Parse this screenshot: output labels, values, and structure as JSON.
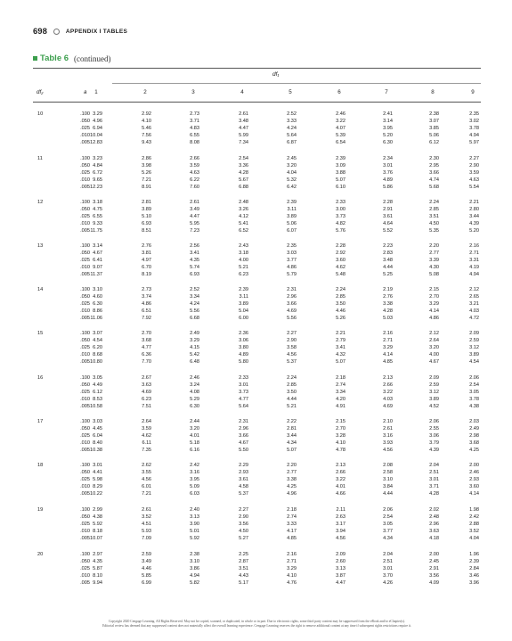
{
  "header": {
    "page_number": "698",
    "appendix_title": "APPENDIX I TABLES"
  },
  "table": {
    "label": "Table 6",
    "continued": "(continued)",
    "df1_label": "df₁",
    "df2_label": "df₂",
    "alpha_label": "a",
    "columns": [
      "1",
      "2",
      "3",
      "4",
      "5",
      "6",
      "7",
      "8",
      "9"
    ],
    "groups": [
      {
        "df2": "10",
        "rows": [
          [
            ".100",
            "3.29",
            "2.92",
            "2.73",
            "2.61",
            "2.52",
            "2.46",
            "2.41",
            "2.38",
            "2.35"
          ],
          [
            ".050",
            "4.96",
            "4.10",
            "3.71",
            "3.48",
            "3.33",
            "3.22",
            "3.14",
            "3.07",
            "3.02"
          ],
          [
            ".025",
            "6.94",
            "5.46",
            "4.83",
            "4.47",
            "4.24",
            "4.07",
            "3.95",
            "3.85",
            "3.78"
          ],
          [
            ".010",
            "10.04",
            "7.56",
            "6.55",
            "5.99",
            "5.64",
            "5.39",
            "5.20",
            "5.06",
            "4.94"
          ],
          [
            ".005",
            "12.83",
            "9.43",
            "8.08",
            "7.34",
            "6.87",
            "6.54",
            "6.30",
            "6.12",
            "5.97"
          ]
        ]
      },
      {
        "df2": "11",
        "rows": [
          [
            ".100",
            "3.23",
            "2.86",
            "2.66",
            "2.54",
            "2.45",
            "2.39",
            "2.34",
            "2.30",
            "2.27"
          ],
          [
            ".050",
            "4.84",
            "3.98",
            "3.59",
            "3.36",
            "3.20",
            "3.09",
            "3.01",
            "2.95",
            "2.90"
          ],
          [
            ".025",
            "6.72",
            "5.26",
            "4.63",
            "4.28",
            "4.04",
            "3.88",
            "3.76",
            "3.66",
            "3.59"
          ],
          [
            ".010",
            "9.65",
            "7.21",
            "6.22",
            "5.67",
            "5.32",
            "5.07",
            "4.89",
            "4.74",
            "4.63"
          ],
          [
            ".005",
            "12.23",
            "8.91",
            "7.60",
            "6.88",
            "6.42",
            "6.10",
            "5.86",
            "5.68",
            "5.54"
          ]
        ]
      },
      {
        "df2": "12",
        "rows": [
          [
            ".100",
            "3.18",
            "2.81",
            "2.61",
            "2.48",
            "2.39",
            "2.33",
            "2.28",
            "2.24",
            "2.21"
          ],
          [
            ".050",
            "4.75",
            "3.89",
            "3.49",
            "3.26",
            "3.11",
            "3.00",
            "2.91",
            "2.85",
            "2.80"
          ],
          [
            ".025",
            "6.55",
            "5.10",
            "4.47",
            "4.12",
            "3.89",
            "3.73",
            "3.61",
            "3.51",
            "3.44"
          ],
          [
            ".010",
            "9.33",
            "6.93",
            "5.95",
            "5.41",
            "5.06",
            "4.82",
            "4.64",
            "4.50",
            "4.39"
          ],
          [
            ".005",
            "11.75",
            "8.51",
            "7.23",
            "6.52",
            "6.07",
            "5.76",
            "5.52",
            "5.35",
            "5.20"
          ]
        ]
      },
      {
        "df2": "13",
        "rows": [
          [
            ".100",
            "3.14",
            "2.76",
            "2.56",
            "2.43",
            "2.35",
            "2.28",
            "2.23",
            "2.20",
            "2.16"
          ],
          [
            ".050",
            "4.67",
            "3.81",
            "3.41",
            "3.18",
            "3.03",
            "2.92",
            "2.83",
            "2.77",
            "2.71"
          ],
          [
            ".025",
            "6.41",
            "4.97",
            "4.35",
            "4.00",
            "3.77",
            "3.60",
            "3.48",
            "3.39",
            "3.31"
          ],
          [
            ".010",
            "9.07",
            "6.70",
            "5.74",
            "5.21",
            "4.86",
            "4.62",
            "4.44",
            "4.30",
            "4.19"
          ],
          [
            ".005",
            "11.37",
            "8.19",
            "6.93",
            "6.23",
            "5.79",
            "5.48",
            "5.25",
            "5.08",
            "4.94"
          ]
        ]
      },
      {
        "df2": "14",
        "rows": [
          [
            ".100",
            "3.10",
            "2.73",
            "2.52",
            "2.39",
            "2.31",
            "2.24",
            "2.19",
            "2.15",
            "2.12"
          ],
          [
            ".050",
            "4.60",
            "3.74",
            "3.34",
            "3.11",
            "2.96",
            "2.85",
            "2.76",
            "2.70",
            "2.65"
          ],
          [
            ".025",
            "6.30",
            "4.86",
            "4.24",
            "3.89",
            "3.66",
            "3.50",
            "3.38",
            "3.29",
            "3.21"
          ],
          [
            ".010",
            "8.86",
            "6.51",
            "5.56",
            "5.04",
            "4.69",
            "4.46",
            "4.28",
            "4.14",
            "4.03"
          ],
          [
            ".005",
            "11.06",
            "7.92",
            "6.68",
            "6.00",
            "5.56",
            "5.26",
            "5.03",
            "4.86",
            "4.72"
          ]
        ]
      },
      {
        "df2": "15",
        "rows": [
          [
            ".100",
            "3.07",
            "2.70",
            "2.49",
            "2.36",
            "2.27",
            "2.21",
            "2.16",
            "2.12",
            "2.09"
          ],
          [
            ".050",
            "4.54",
            "3.68",
            "3.29",
            "3.06",
            "2.90",
            "2.79",
            "2.71",
            "2.64",
            "2.59"
          ],
          [
            ".025",
            "6.20",
            "4.77",
            "4.15",
            "3.80",
            "3.58",
            "3.41",
            "3.29",
            "3.20",
            "3.12"
          ],
          [
            ".010",
            "8.68",
            "6.36",
            "5.42",
            "4.89",
            "4.56",
            "4.32",
            "4.14",
            "4.00",
            "3.89"
          ],
          [
            ".005",
            "10.80",
            "7.70",
            "6.48",
            "5.80",
            "5.37",
            "5.07",
            "4.85",
            "4.67",
            "4.54"
          ]
        ]
      },
      {
        "df2": "16",
        "rows": [
          [
            ".100",
            "3.05",
            "2.67",
            "2.46",
            "2.33",
            "2.24",
            "2.18",
            "2.13",
            "2.09",
            "2.06"
          ],
          [
            ".050",
            "4.49",
            "3.63",
            "3.24",
            "3.01",
            "2.85",
            "2.74",
            "2.66",
            "2.59",
            "2.54"
          ],
          [
            ".025",
            "6.12",
            "4.69",
            "4.08",
            "3.73",
            "3.50",
            "3.34",
            "3.22",
            "3.12",
            "3.05"
          ],
          [
            ".010",
            "8.53",
            "6.23",
            "5.29",
            "4.77",
            "4.44",
            "4.20",
            "4.03",
            "3.89",
            "3.78"
          ],
          [
            ".005",
            "10.58",
            "7.51",
            "6.30",
            "5.64",
            "5.21",
            "4.91",
            "4.69",
            "4.52",
            "4.38"
          ]
        ]
      },
      {
        "df2": "17",
        "rows": [
          [
            ".100",
            "3.03",
            "2.64",
            "2.44",
            "2.31",
            "2.22",
            "2.15",
            "2.10",
            "2.06",
            "2.03"
          ],
          [
            ".050",
            "4.45",
            "3.59",
            "3.20",
            "2.96",
            "2.81",
            "2.70",
            "2.61",
            "2.55",
            "2.49"
          ],
          [
            ".025",
            "6.04",
            "4.62",
            "4.01",
            "3.66",
            "3.44",
            "3.28",
            "3.16",
            "3.06",
            "2.98"
          ],
          [
            ".010",
            "8.40",
            "6.11",
            "5.18",
            "4.67",
            "4.34",
            "4.10",
            "3.93",
            "3.79",
            "3.68"
          ],
          [
            ".005",
            "10.38",
            "7.35",
            "6.16",
            "5.50",
            "5.07",
            "4.78",
            "4.56",
            "4.39",
            "4.25"
          ]
        ]
      },
      {
        "df2": "18",
        "rows": [
          [
            ".100",
            "3.01",
            "2.62",
            "2.42",
            "2.29",
            "2.20",
            "2.13",
            "2.08",
            "2.04",
            "2.00"
          ],
          [
            ".050",
            "4.41",
            "3.55",
            "3.16",
            "2.93",
            "2.77",
            "2.66",
            "2.58",
            "2.51",
            "2.46"
          ],
          [
            ".025",
            "5.98",
            "4.56",
            "3.95",
            "3.61",
            "3.38",
            "3.22",
            "3.10",
            "3.01",
            "2.93"
          ],
          [
            ".010",
            "8.29",
            "6.01",
            "5.09",
            "4.58",
            "4.25",
            "4.01",
            "3.84",
            "3.71",
            "3.60"
          ],
          [
            ".005",
            "10.22",
            "7.21",
            "6.03",
            "5.37",
            "4.96",
            "4.66",
            "4.44",
            "4.28",
            "4.14"
          ]
        ]
      },
      {
        "df2": "19",
        "rows": [
          [
            ".100",
            "2.99",
            "2.61",
            "2.40",
            "2.27",
            "2.18",
            "2.11",
            "2.06",
            "2.02",
            "1.98"
          ],
          [
            ".050",
            "4.38",
            "3.52",
            "3.13",
            "2.90",
            "2.74",
            "2.63",
            "2.54",
            "2.48",
            "2.42"
          ],
          [
            ".025",
            "5.92",
            "4.51",
            "3.90",
            "3.56",
            "3.33",
            "3.17",
            "3.05",
            "2.96",
            "2.88"
          ],
          [
            ".010",
            "8.18",
            "5.93",
            "5.01",
            "4.50",
            "4.17",
            "3.94",
            "3.77",
            "3.63",
            "3.52"
          ],
          [
            ".005",
            "10.07",
            "7.09",
            "5.92",
            "5.27",
            "4.85",
            "4.56",
            "4.34",
            "4.18",
            "4.04"
          ]
        ]
      },
      {
        "df2": "20",
        "rows": [
          [
            ".100",
            "2.97",
            "2.59",
            "2.38",
            "2.25",
            "2.16",
            "2.09",
            "2.04",
            "2.00",
            "1.96"
          ],
          [
            ".050",
            "4.35",
            "3.49",
            "3.10",
            "2.87",
            "2.71",
            "2.60",
            "2.51",
            "2.45",
            "2.39"
          ],
          [
            ".025",
            "5.87",
            "4.46",
            "3.86",
            "3.51",
            "3.29",
            "3.13",
            "3.01",
            "2.91",
            "2.84"
          ],
          [
            ".010",
            "8.10",
            "5.85",
            "4.94",
            "4.43",
            "4.10",
            "3.87",
            "3.70",
            "3.56",
            "3.46"
          ],
          [
            ".005",
            "9.94",
            "6.99",
            "5.82",
            "5.17",
            "4.76",
            "4.47",
            "4.26",
            "4.09",
            "3.96"
          ]
        ]
      }
    ]
  },
  "footer": {
    "line1": "Copyright 2020 Cengage Learning. All Rights Reserved. May not be copied, scanned, or duplicated, in whole or in part. Due to electronic rights, some third party content may be suppressed from the eBook and/or eChapter(s).",
    "line2": "Editorial review has deemed that any suppressed content does not materially affect the overall learning experience. Cengage Learning reserves the right to remove additional content at any time if subsequent rights restrictions require it."
  },
  "colors": {
    "accent": "#3d9f4e"
  }
}
